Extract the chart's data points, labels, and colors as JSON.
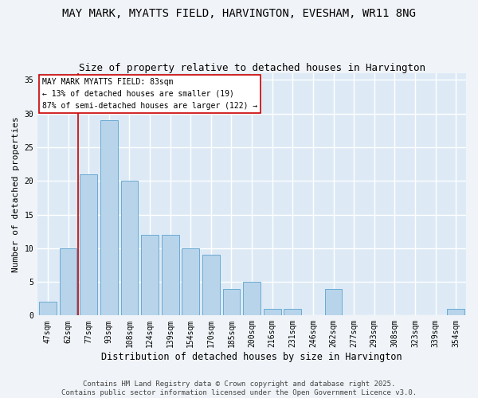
{
  "title": "MAY MARK, MYATTS FIELD, HARVINGTON, EVESHAM, WR11 8NG",
  "subtitle": "Size of property relative to detached houses in Harvington",
  "xlabel": "Distribution of detached houses by size in Harvington",
  "ylabel": "Number of detached properties",
  "categories": [
    "47sqm",
    "62sqm",
    "77sqm",
    "93sqm",
    "108sqm",
    "124sqm",
    "139sqm",
    "154sqm",
    "170sqm",
    "185sqm",
    "200sqm",
    "216sqm",
    "231sqm",
    "246sqm",
    "262sqm",
    "277sqm",
    "293sqm",
    "308sqm",
    "323sqm",
    "339sqm",
    "354sqm"
  ],
  "values": [
    2,
    10,
    21,
    29,
    20,
    12,
    12,
    10,
    9,
    4,
    5,
    1,
    1,
    0,
    4,
    0,
    0,
    0,
    0,
    0,
    1
  ],
  "bar_color": "#b8d4ea",
  "bar_edgecolor": "#6aaad4",
  "background_color": "#ddeaf6",
  "grid_color": "#ffffff",
  "vline_color": "#cc0000",
  "vline_pos": 1.5,
  "annotation_text": "MAY MARK MYATTS FIELD: 83sqm\n← 13% of detached houses are smaller (19)\n87% of semi-detached houses are larger (122) →",
  "annotation_box_color": "#ffffff",
  "annotation_box_edgecolor": "#cc0000",
  "footer_text": "Contains HM Land Registry data © Crown copyright and database right 2025.\nContains public sector information licensed under the Open Government Licence v3.0.",
  "ylim": [
    0,
    36
  ],
  "yticks": [
    0,
    5,
    10,
    15,
    20,
    25,
    30,
    35
  ],
  "title_fontsize": 10,
  "subtitle_fontsize": 9,
  "xlabel_fontsize": 8.5,
  "ylabel_fontsize": 8,
  "tick_fontsize": 7,
  "annotation_fontsize": 7,
  "footer_fontsize": 6.5,
  "fig_bg": "#f0f4f8"
}
